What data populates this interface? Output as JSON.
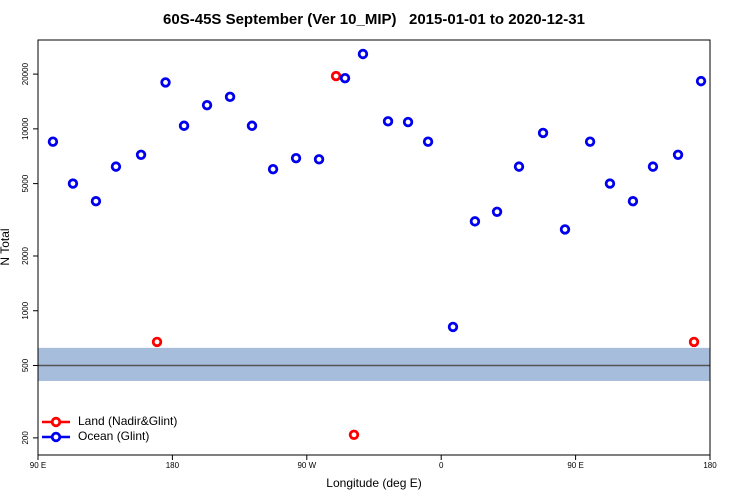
{
  "chart_data": {
    "type": "scatter",
    "title": "60S-45S September (Ver 10_MIP)   2015-01-01 to 2020-12-31",
    "xlabel": "Longitude (deg E)",
    "ylabel": "N Total",
    "log_y": true,
    "xlim": [
      90,
      540
    ],
    "ylim": [
      161,
      30800
    ],
    "xticks": [
      {
        "value": 90,
        "label": "90 E"
      },
      180,
      {
        "value": 270,
        "label": "90 W"
      },
      {
        "value": 360,
        "label": "0"
      },
      {
        "value": 450,
        "label": "90 E"
      },
      {
        "value": 540,
        "label": "180"
      }
    ],
    "yticks": [
      200,
      500,
      1000,
      2000,
      5000,
      10000,
      20000
    ],
    "band": [
      411,
      625
    ],
    "band_color": "#a7bddc",
    "hline": 500,
    "hline_color": "#555555",
    "legend": "bottom-left",
    "series": [
      {
        "name": "Land (Nadir&Glint)",
        "color": "#ff0000",
        "x": [
          169.7,
          289.6,
          301.6,
          529.3
        ],
        "values": [
          674,
          19500,
          208,
          674
        ]
      },
      {
        "name": "Ocean (Glint)",
        "color": "#0000ee",
        "x": [
          100.0,
          113.4,
          128.8,
          142.2,
          159.0,
          175.4,
          187.8,
          203.2,
          218.6,
          233.3,
          247.4,
          262.8,
          278.2,
          295.6,
          307.6,
          324.4,
          337.8,
          351.2,
          367.9,
          382.6,
          397.4,
          412.1,
          428.2,
          442.9,
          459.7,
          473.0,
          488.4,
          501.8,
          518.6,
          534.0
        ],
        "values": [
          8500,
          5000,
          4000,
          6200,
          7200,
          18000,
          10400,
          13500,
          15000,
          10400,
          6000,
          6900,
          6800,
          19000,
          25800,
          11000,
          10900,
          8500,
          815,
          3100,
          3500,
          6200,
          9500,
          2800,
          8500,
          5000,
          4000,
          6200,
          7200,
          18300
        ]
      }
    ]
  }
}
